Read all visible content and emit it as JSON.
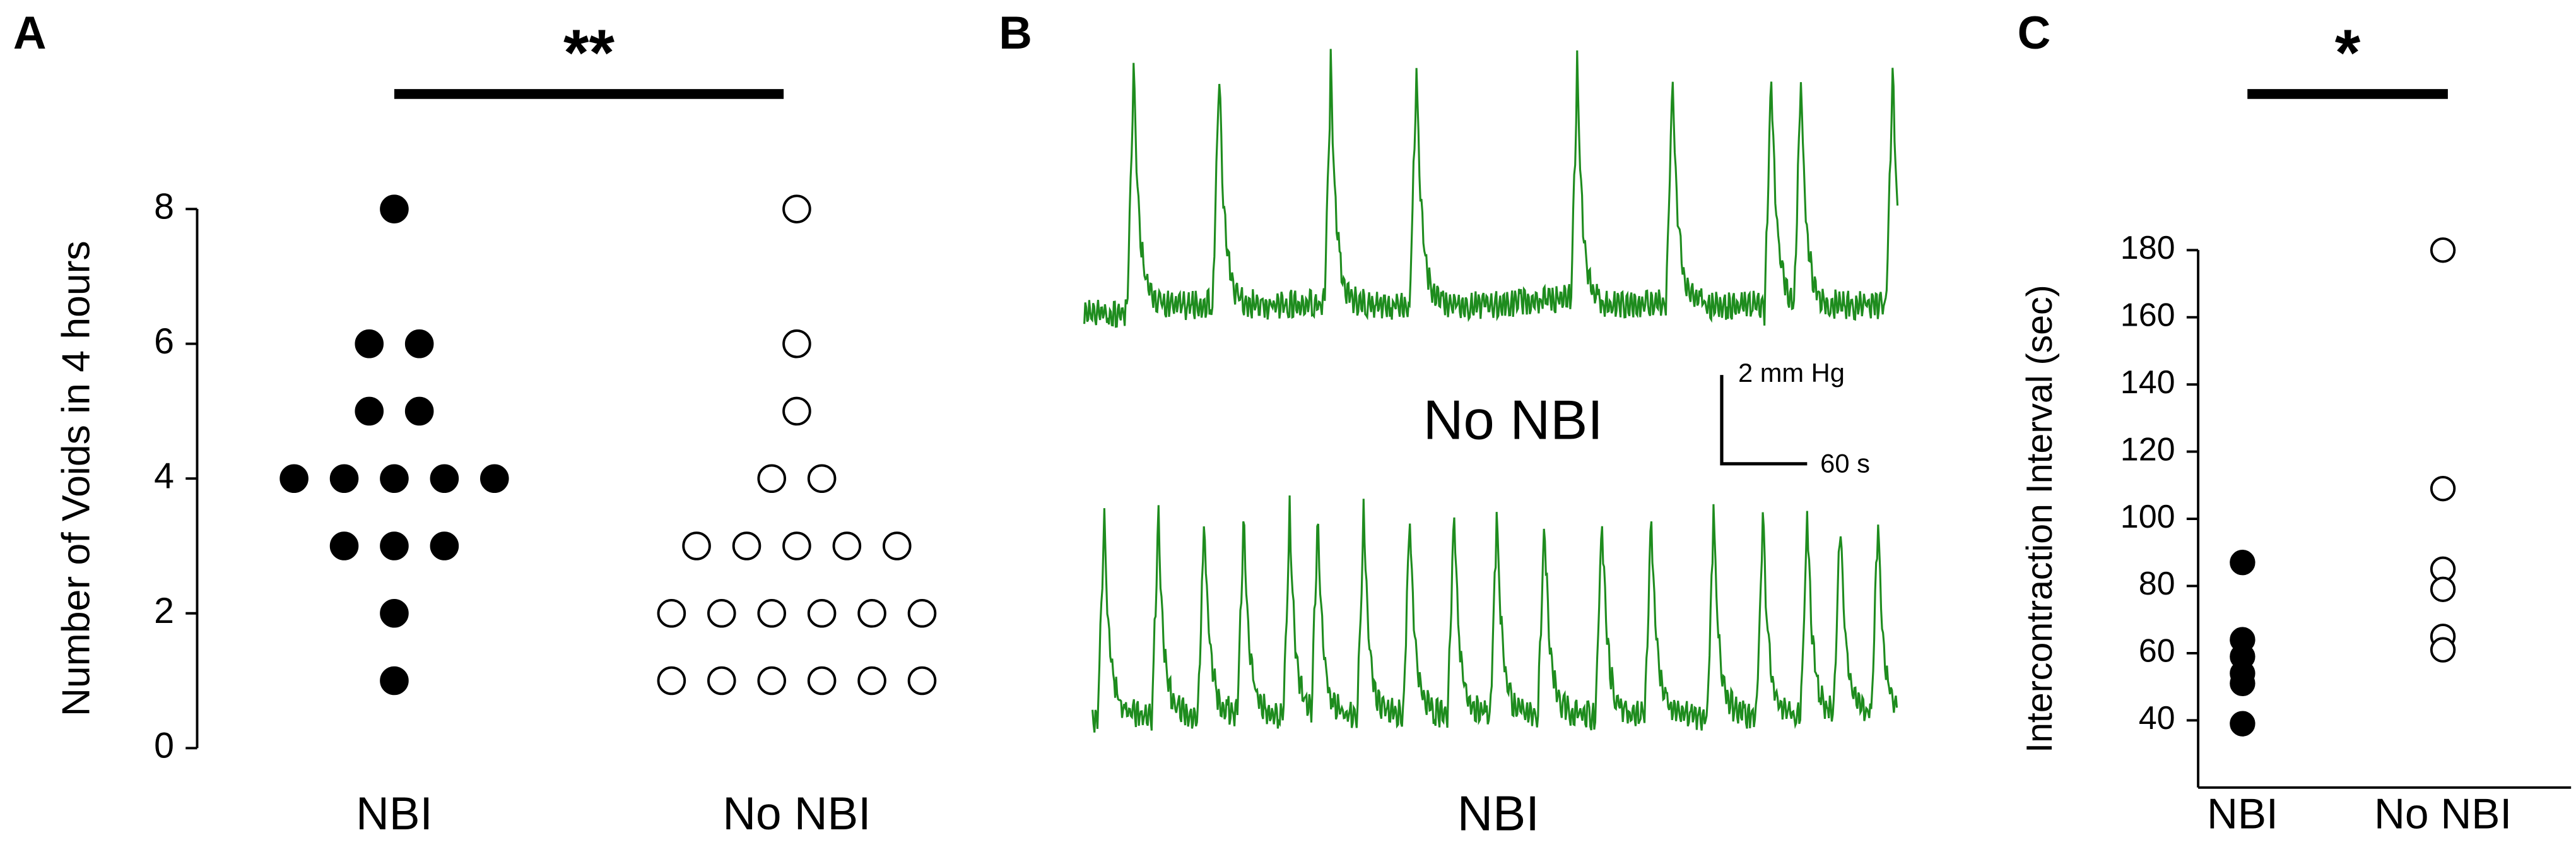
{
  "chart_data": [
    {
      "panel": "A",
      "type": "dot",
      "ylabel": "Number of Voids in 4 hours",
      "categories": [
        "NBI",
        "No NBI"
      ],
      "values": [
        [
          8,
          6,
          6,
          5,
          5,
          4,
          4,
          4,
          4,
          4,
          3,
          3,
          3,
          2,
          1
        ],
        [
          8,
          6,
          5,
          4,
          4,
          3,
          3,
          3,
          3,
          3,
          2,
          2,
          2,
          2,
          2,
          2,
          1,
          1,
          1,
          1,
          1,
          1
        ]
      ],
      "filled": [
        true,
        false
      ],
      "color": "#000000",
      "ylim": [
        0,
        8
      ],
      "yticks": [
        0,
        2,
        4,
        6,
        8
      ],
      "significance": "**"
    },
    {
      "panel": "B",
      "type": "trace",
      "traces": [
        "No NBI",
        "NBI"
      ],
      "scale_bar": [
        "2 mm Hg",
        "60 s"
      ],
      "color": "#1e8c1e"
    },
    {
      "panel": "C",
      "type": "dot",
      "ylabel": "Intercontraction Interval (sec)",
      "categories": [
        "NBI",
        "No NBI"
      ],
      "values": [
        [
          87,
          64,
          59,
          54,
          51,
          39
        ],
        [
          180,
          109,
          85,
          79,
          65,
          61
        ]
      ],
      "filled": [
        true,
        false
      ],
      "color": "#000000",
      "ylim": [
        20,
        180
      ],
      "yticks": [
        40,
        60,
        80,
        100,
        120,
        140,
        160,
        180
      ],
      "significance": "*"
    }
  ]
}
